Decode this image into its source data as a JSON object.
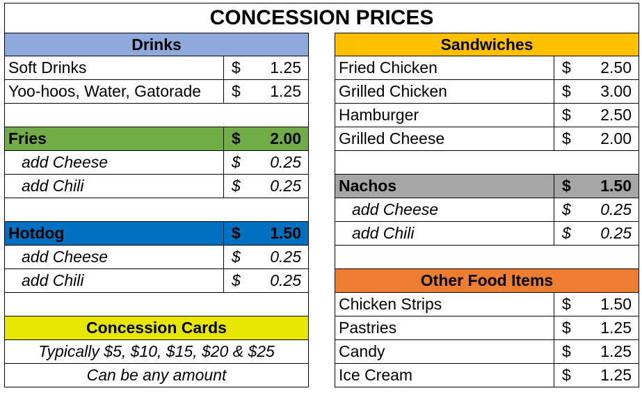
{
  "title": "CONCESSION PRICES",
  "colors": {
    "drinks": "#8EA9DB",
    "sandwiches": "#FFC000",
    "fries": "#70AD47",
    "hotdog": "#0070C0",
    "nachos": "#A6A6A6",
    "other_food": "#ED7D31",
    "concession_cards": "#E6E600"
  },
  "drinks": {
    "header": "Drinks",
    "items": [
      {
        "name": "Soft Drinks",
        "currency": "$",
        "price": "1.25"
      },
      {
        "name": "Yoo-hoos, Water, Gatorade",
        "currency": "$",
        "price": "1.25"
      }
    ]
  },
  "fries": {
    "name": "Fries",
    "currency": "$",
    "price": "2.00",
    "addons": [
      {
        "name": "add Cheese",
        "currency": "$",
        "price": "0.25"
      },
      {
        "name": "add Chili",
        "currency": "$",
        "price": "0.25"
      }
    ]
  },
  "hotdog": {
    "name": "Hotdog",
    "currency": "$",
    "price": "1.50",
    "addons": [
      {
        "name": "add Cheese",
        "currency": "$",
        "price": "0.25"
      },
      {
        "name": "add Chili",
        "currency": "$",
        "price": "0.25"
      }
    ]
  },
  "concession_cards": {
    "header": "Concession Cards",
    "line1": "Typically $5, $10, $15, $20 & $25",
    "line2": "Can be any amount"
  },
  "sandwiches": {
    "header": "Sandwiches",
    "items": [
      {
        "name": "Fried Chicken",
        "currency": "$",
        "price": "2.50"
      },
      {
        "name": "Grilled Chicken",
        "currency": "$",
        "price": "3.00"
      },
      {
        "name": "Hamburger",
        "currency": "$",
        "price": "2.50"
      },
      {
        "name": "Grilled Cheese",
        "currency": "$",
        "price": "2.00"
      }
    ]
  },
  "nachos": {
    "name": "Nachos",
    "currency": "$",
    "price": "1.50",
    "addons": [
      {
        "name": "add Cheese",
        "currency": "$",
        "price": "0.25"
      },
      {
        "name": "add Chili",
        "currency": "$",
        "price": "0.25"
      }
    ]
  },
  "other_food": {
    "header": "Other Food Items",
    "items": [
      {
        "name": "Chicken Strips",
        "currency": "$",
        "price": "1.50"
      },
      {
        "name": "Pastries",
        "currency": "$",
        "price": "1.25"
      },
      {
        "name": "Candy",
        "currency": "$",
        "price": "1.25"
      },
      {
        "name": "Ice Cream",
        "currency": "$",
        "price": "1.25"
      }
    ]
  }
}
